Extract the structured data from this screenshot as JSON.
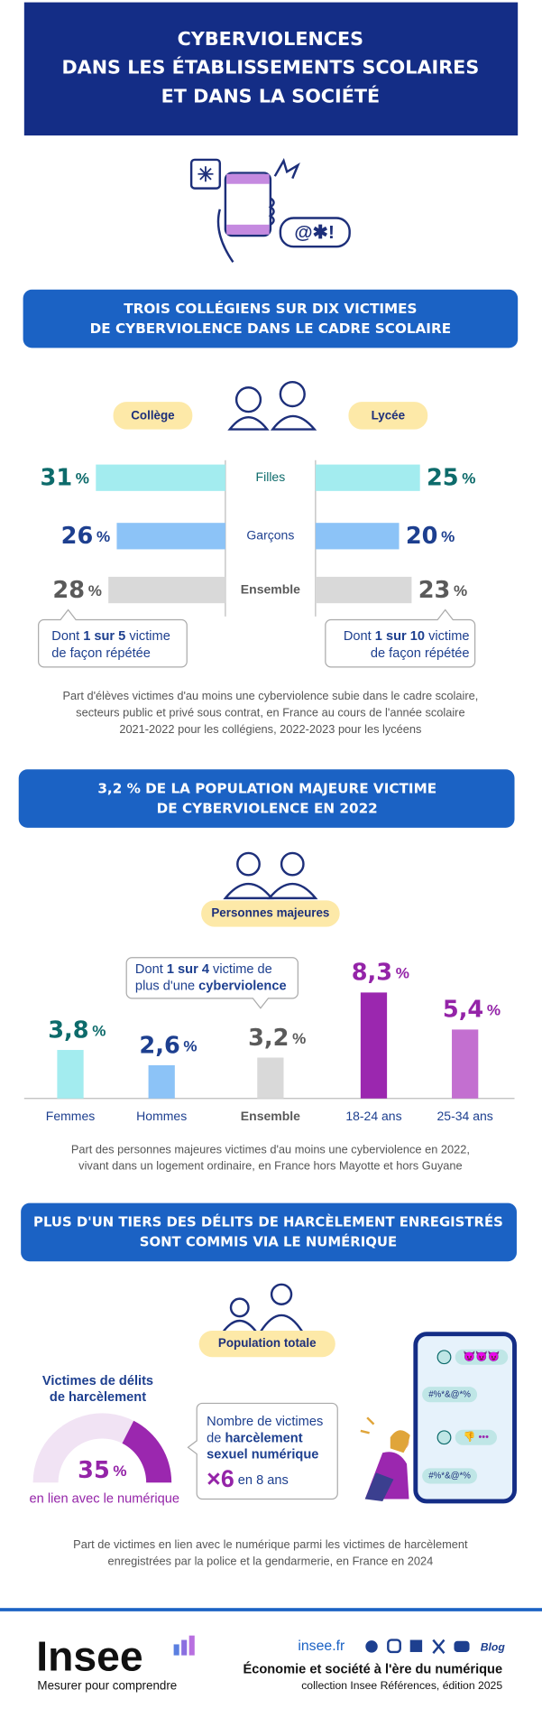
{
  "header": {
    "title": [
      "CYBERVIOLENCES",
      "DANS LES ÉTABLISSEMENTS SCOLAIRES",
      "ET DANS LA SOCIÉTÉ"
    ]
  },
  "section1": {
    "title": [
      "TROIS COLLÉGIENS SUR DIX VICTIMES",
      "DE CYBERVIOLENCE DANS LE CADRE SCOLAIRE"
    ],
    "unit": "%",
    "categories": [
      "Filles",
      "Garçons",
      "Ensemble"
    ],
    "colors": [
      "#a3ecef",
      "#8cc3f7",
      "#d9d9d9"
    ],
    "label_colors": [
      "#0d6b6b",
      "#1d3f8f",
      "#5a5a5a"
    ],
    "groups": [
      {
        "name": "Collège",
        "values": [
          31,
          26,
          28
        ],
        "note": [
          "Dont ",
          "1 sur 5",
          " victime",
          "de façon répétée"
        ]
      },
      {
        "name": "Lycée",
        "values": [
          25,
          20,
          23
        ],
        "note": [
          "Dont ",
          "1 sur 10",
          " victime",
          "de façon répétée"
        ]
      }
    ],
    "caption": [
      "Part d'élèves victimes d'au moins une cyberviolence subie dans le cadre scolaire,",
      "secteurs public et privé sous contrat, en France au cours de l'année scolaire",
      "2021-2022 pour les collégiens, 2022-2023 pour les lycéens"
    ]
  },
  "section2": {
    "title": [
      "3,2 % DE LA POPULATION MAJEURE VICTIME",
      "DE CYBERVIOLENCE EN 2022"
    ],
    "population": "Personnes majeures",
    "note": [
      "Dont ",
      "1 sur 4",
      " victime de",
      "plus d'une ",
      "cyberviolence"
    ],
    "unit": "%",
    "categories": [
      "Femmes",
      "Hommes",
      "Ensemble",
      "18-24 ans",
      "25-34 ans"
    ],
    "values": [
      3.8,
      2.6,
      3.2,
      8.3,
      5.4
    ],
    "value_labels": [
      "3,8",
      "2,6",
      "3,2",
      "8,3",
      "5,4"
    ],
    "colors": [
      "#a3ecef",
      "#8cc3f7",
      "#d9d9d9",
      "#9b27af",
      "#c36fd0"
    ],
    "label_colors": [
      "#0d6b6b",
      "#1d3f8f",
      "#5a5a5a",
      "#9424a8",
      "#9424a8"
    ],
    "caption": [
      "Part des personnes majeures victimes d'au moins une cyberviolence en 2022,",
      "vivant dans un logement ordinaire, en France hors Mayotte et hors Guyane"
    ]
  },
  "section3": {
    "title": [
      "PLUS D'UN TIERS DES DÉLITS DE HARCÈLEMENT ENREGISTRÉS",
      "SONT COMMIS VIA LE NUMÉRIQUE"
    ],
    "population": "Population totale",
    "gauge_title": [
      "Victimes de délits",
      "de harcèlement"
    ],
    "share": 35,
    "unit": "%",
    "share_label": "en lien avec le numérique",
    "note": [
      "Nombre de victimes",
      "de ",
      "harcèlement",
      "sexuel numérique",
      "×",
      6,
      " en 8 ans"
    ],
    "chat": [
      "#%*&@*%",
      "#%*&@*%"
    ],
    "caption": [
      "Part de victimes en lien avec le numérique parmi les victimes de harcèlement",
      "enregistrées par la police et la gendarmerie, en France en 2024"
    ]
  },
  "footer": {
    "logo": "Insee",
    "tagline": "Mesurer pour comprendre",
    "site": "insee.fr",
    "blog": "Blog",
    "publication": "Économie et société à l'ère du numérique",
    "collection": "collection Insee Références, édition 2025"
  }
}
